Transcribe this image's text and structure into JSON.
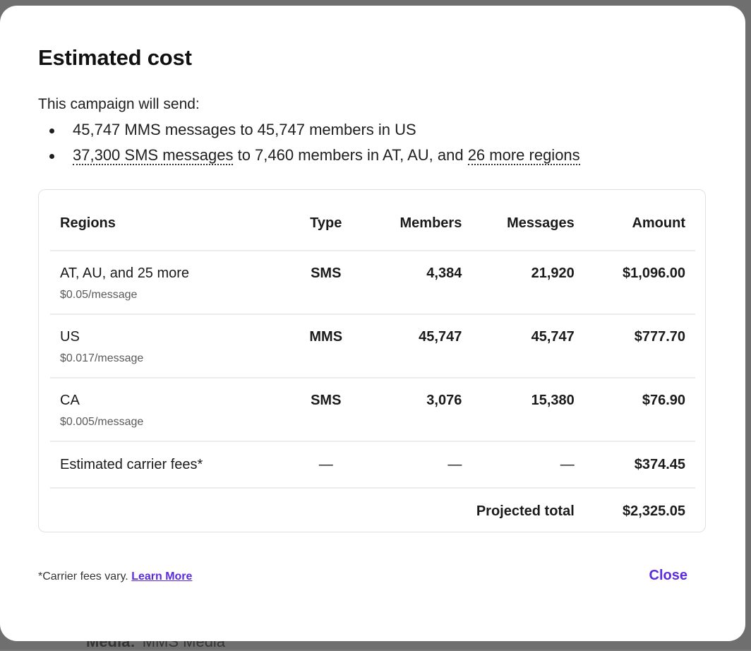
{
  "background": {
    "partial_text_label": "Media:",
    "partial_text_value": "MMS Media"
  },
  "modal": {
    "title": "Estimated cost",
    "intro": "This campaign will send:",
    "sends": [
      {
        "text": "45,747 MMS messages to 45,747 members in US"
      },
      {
        "link_part": "37,300 SMS messages",
        "middle": " to 7,460 members in AT, AU, and ",
        "more_link": "26 more regions"
      }
    ],
    "table": {
      "headers": {
        "regions": "Regions",
        "type": "Type",
        "members": "Members",
        "messages": "Messages",
        "amount": "Amount"
      },
      "rows": [
        {
          "region": "AT, AU, and 25 more",
          "rate": "$0.05/message",
          "type": "SMS",
          "members": "4,384",
          "messages": "21,920",
          "amount": "$1,096.00"
        },
        {
          "region": "US",
          "rate": "$0.017/message",
          "type": "MMS",
          "members": "45,747",
          "messages": "45,747",
          "amount": "$777.70"
        },
        {
          "region": "CA",
          "rate": "$0.005/message",
          "type": "SMS",
          "members": "3,076",
          "messages": "15,380",
          "amount": "$76.90"
        }
      ],
      "fees": {
        "label": "Estimated carrier fees*",
        "type": "—",
        "members": "—",
        "messages": "—",
        "amount": "$374.45"
      },
      "total": {
        "label": "Projected total",
        "amount": "$2,325.05"
      }
    },
    "footnote": "*Carrier fees vary.",
    "learn_more": "Learn More",
    "close_label": "Close",
    "accent_color": "#5b2be0"
  }
}
